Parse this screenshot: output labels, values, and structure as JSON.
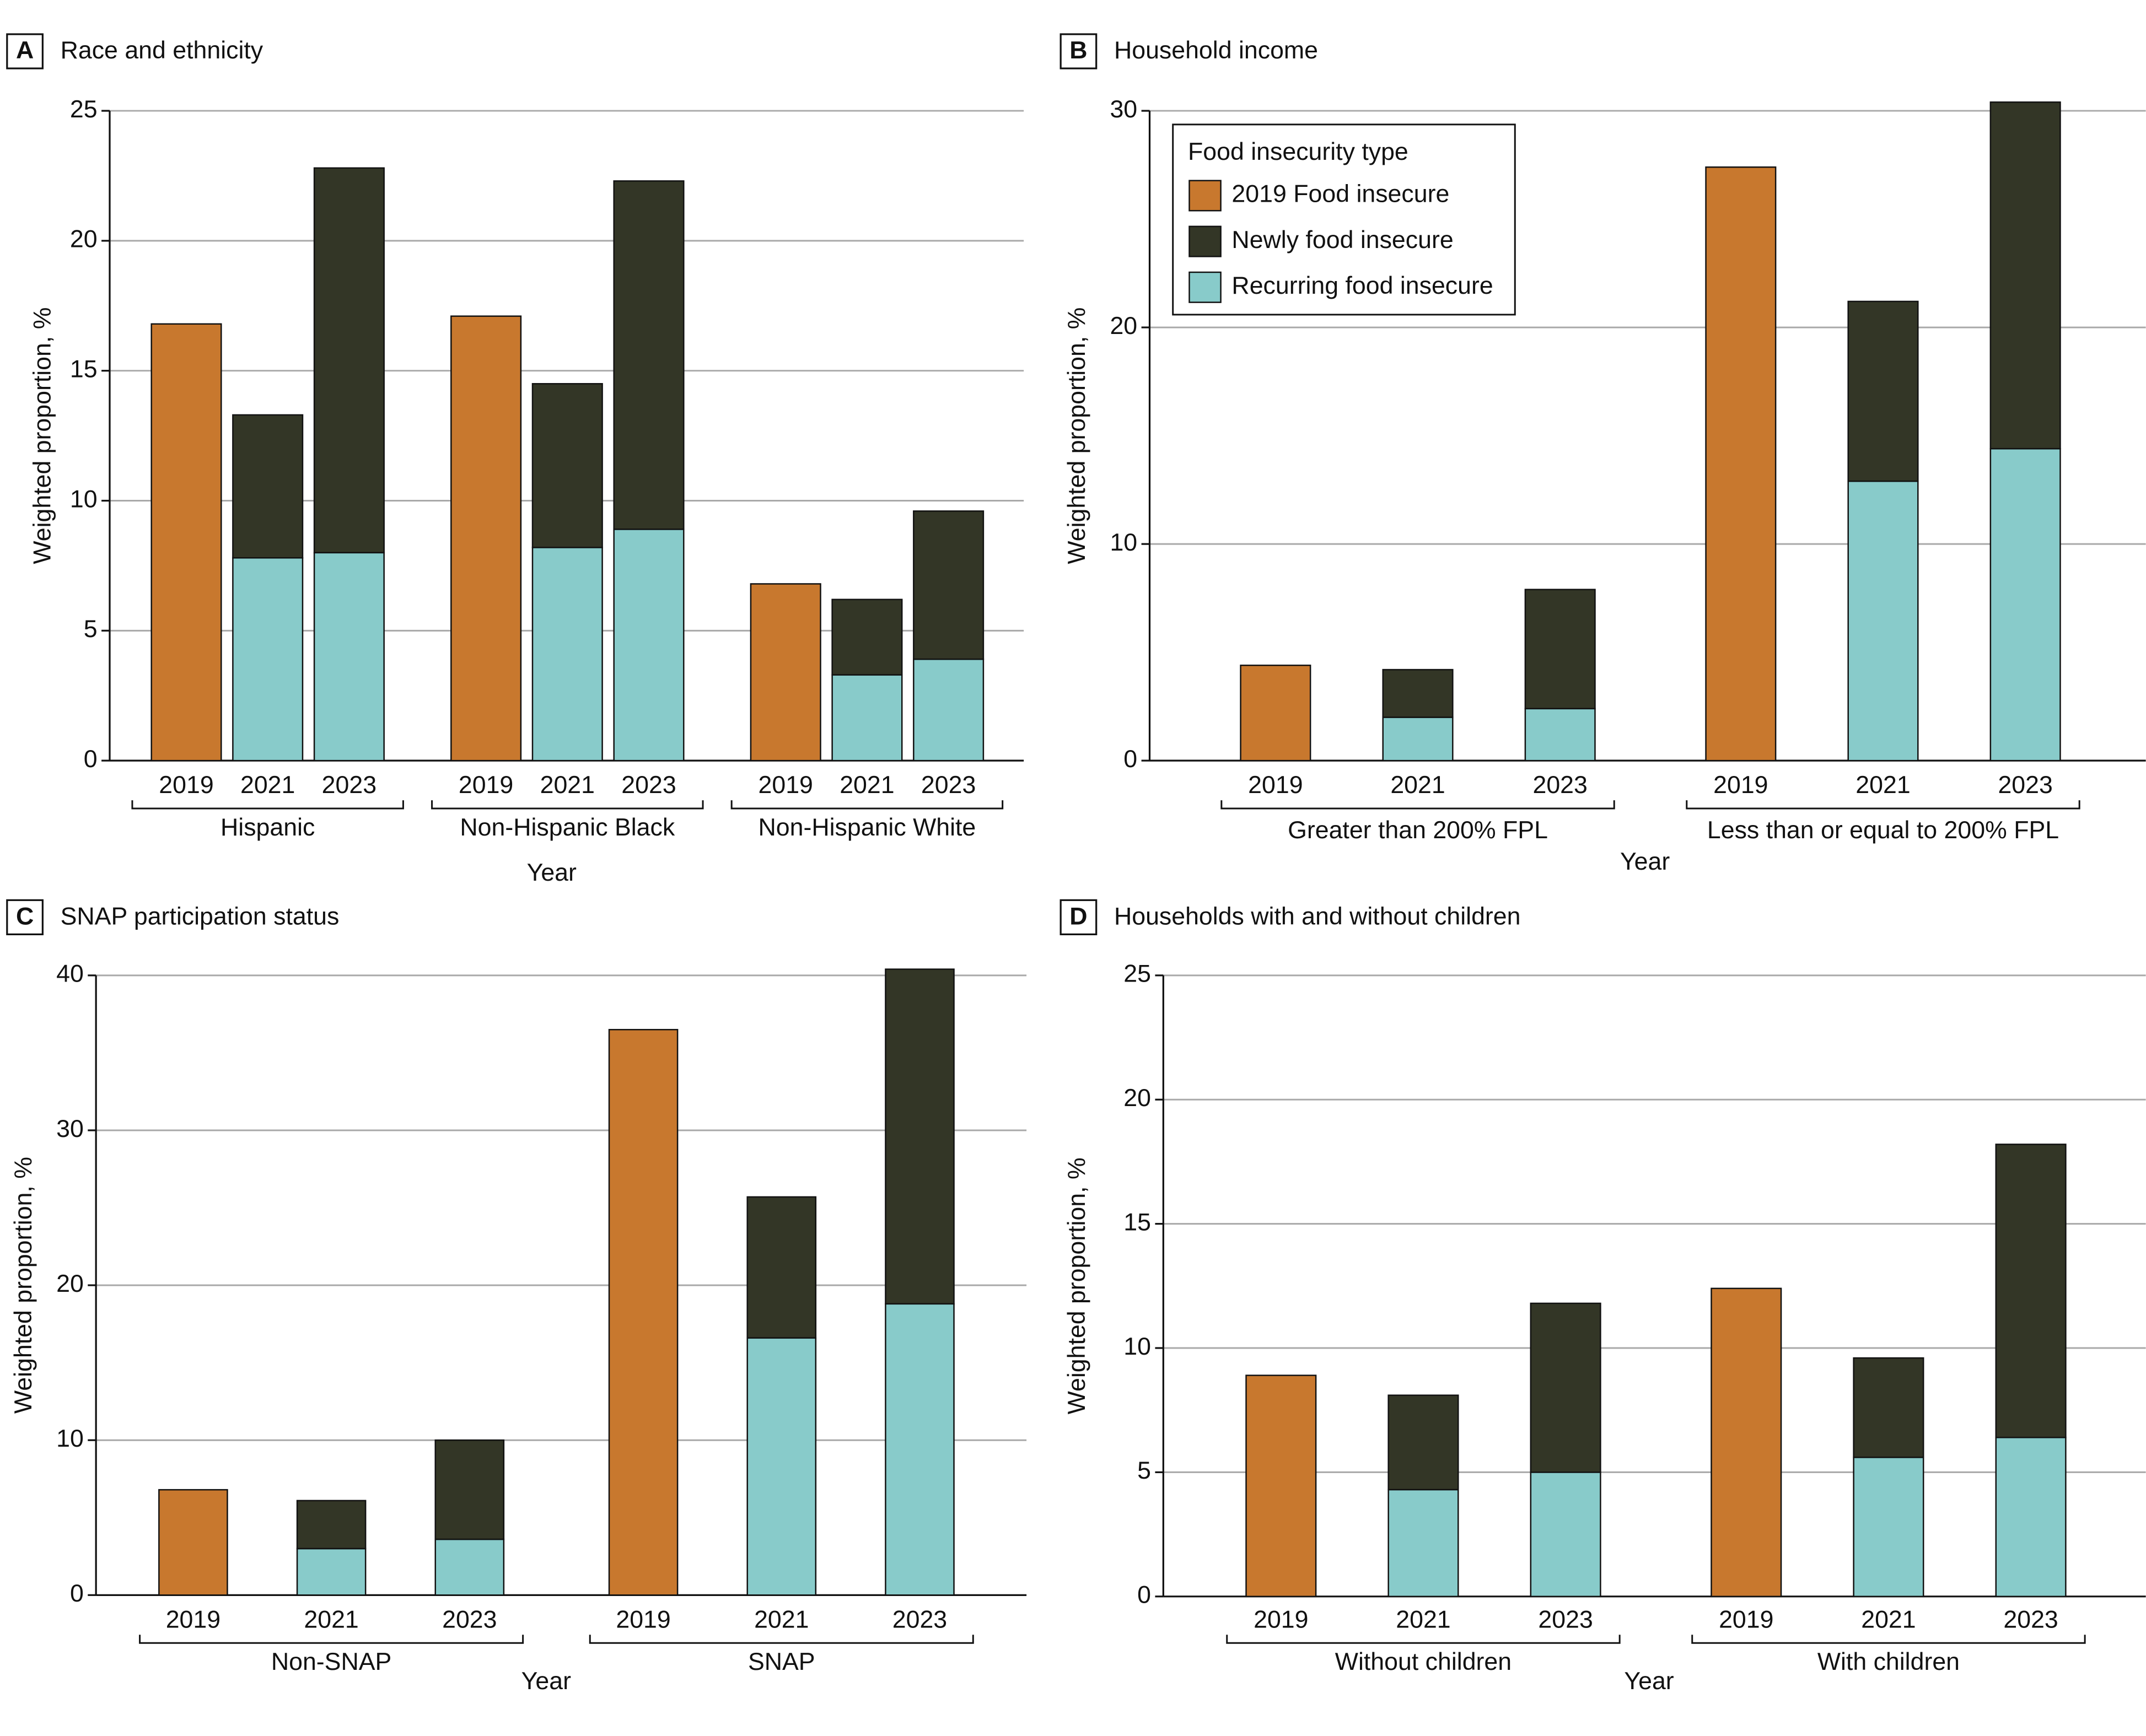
{
  "chart_data": [
    {
      "type": "bar",
      "stacked": true,
      "panel": "A",
      "title": "Race and ethnicity",
      "y_label": "Weighted proportion, %",
      "x_label": "Year",
      "groups": [
        "Hispanic",
        "Non-Hispanic Black",
        "Non-Hispanic White"
      ],
      "categories": [
        "2019",
        "2021",
        "2023",
        "2019",
        "2021",
        "2023",
        "2019",
        "2021",
        "2023"
      ],
      "ylim": [
        0,
        25
      ],
      "yticks": [
        0,
        5,
        10,
        15,
        20,
        25
      ],
      "grid": true,
      "series": [
        {
          "color": "#c8782e",
          "values": [
            16.8,
            null,
            null,
            17.1,
            null,
            null,
            6.8,
            null,
            null
          ]
        },
        {
          "color": "#333626",
          "values": [
            null,
            5.5,
            14.8,
            null,
            6.3,
            13.4,
            null,
            2.9,
            5.7
          ]
        },
        {
          "color": "#88cbca",
          "values": [
            null,
            7.8,
            8.0,
            null,
            8.2,
            8.9,
            null,
            3.3,
            3.9
          ]
        }
      ]
    },
    {
      "type": "bar",
      "stacked": true,
      "panel": "B",
      "title": "Household income",
      "y_label": "Weighted proportion, %",
      "x_label": "Year",
      "groups": [
        "Greater than 200% FPL",
        "Less than or equal to 200% FPL"
      ],
      "categories": [
        "2019",
        "2021",
        "2023",
        "2019",
        "2021",
        "2023"
      ],
      "ylim": [
        0,
        30
      ],
      "yticks": [
        0,
        10,
        20,
        30
      ],
      "grid": true,
      "legend": "upper left",
      "legend_title": "Food insecurity type",
      "series": [
        {
          "name": "2019 Food insecure",
          "color": "#c8782e",
          "values": [
            4.4,
            null,
            null,
            27.4,
            null,
            null
          ]
        },
        {
          "name": "Newly food insecure",
          "color": "#333626",
          "values": [
            null,
            2.2,
            5.5,
            null,
            8.3,
            16.0
          ]
        },
        {
          "name": "Recurring food insecure",
          "color": "#88cbca",
          "values": [
            null,
            2.0,
            2.4,
            null,
            12.9,
            14.4
          ]
        }
      ]
    },
    {
      "type": "bar",
      "stacked": true,
      "panel": "C",
      "title": "SNAP participation status",
      "y_label": "Weighted proportion, %",
      "x_label": "Year",
      "groups": [
        "Non-SNAP",
        "SNAP"
      ],
      "categories": [
        "2019",
        "2021",
        "2023",
        "2019",
        "2021",
        "2023"
      ],
      "ylim": [
        0,
        40
      ],
      "yticks": [
        0,
        10,
        20,
        30,
        40
      ],
      "grid": true,
      "series": [
        {
          "color": "#c8782e",
          "values": [
            6.8,
            null,
            null,
            36.5,
            null,
            null
          ]
        },
        {
          "color": "#333626",
          "values": [
            null,
            3.1,
            6.4,
            null,
            9.1,
            21.6
          ]
        },
        {
          "color": "#88cbca",
          "values": [
            null,
            3.0,
            3.6,
            null,
            16.6,
            18.8
          ]
        }
      ]
    },
    {
      "type": "bar",
      "stacked": true,
      "panel": "D",
      "title": "Households with and without children",
      "y_label": "Weighted proportion, %",
      "x_label": "Year",
      "groups": [
        "Without children",
        "With children"
      ],
      "categories": [
        "2019",
        "2021",
        "2023",
        "2019",
        "2021",
        "2023"
      ],
      "ylim": [
        0,
        25
      ],
      "yticks": [
        0,
        5,
        10,
        15,
        20,
        25
      ],
      "grid": true,
      "series": [
        {
          "color": "#c8782e",
          "values": [
            8.9,
            null,
            null,
            12.4,
            null,
            null
          ]
        },
        {
          "color": "#333626",
          "values": [
            null,
            3.8,
            6.8,
            null,
            4.0,
            11.8
          ]
        },
        {
          "color": "#88cbca",
          "values": [
            null,
            4.3,
            5.0,
            null,
            5.6,
            6.4
          ]
        }
      ]
    }
  ]
}
